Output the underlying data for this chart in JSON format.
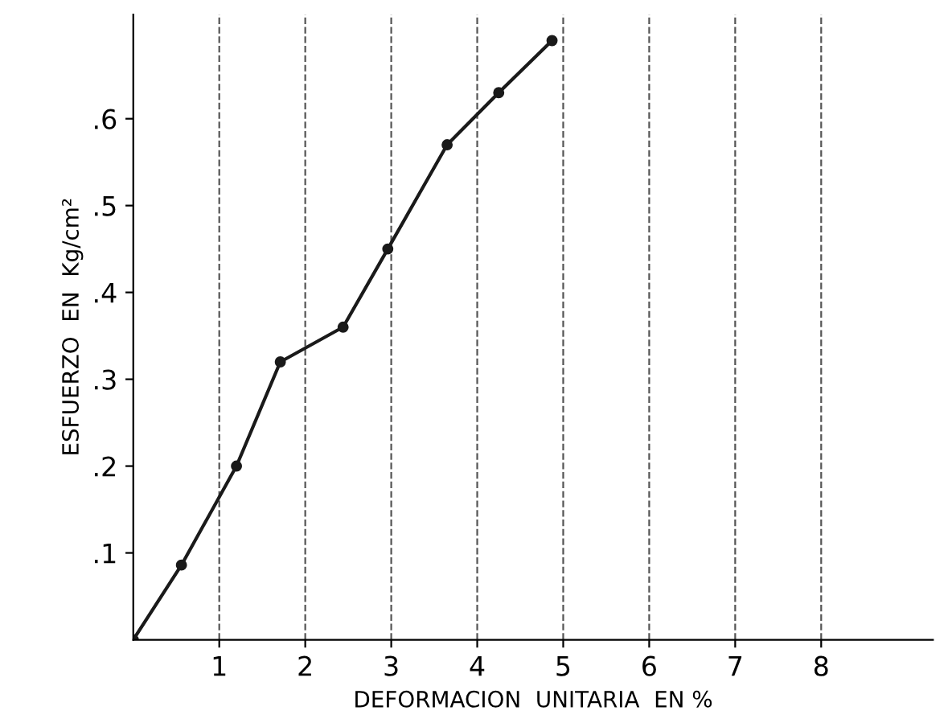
{
  "chart_data": {
    "type": "line",
    "xlabel": "DEFORMACION  UNITARIA  EN %",
    "ylabel": "ESFUERZO  EN  Kg/cm²",
    "x": [
      0,
      0.56,
      1.2,
      1.71,
      2.44,
      2.96,
      3.65,
      4.25,
      4.87
    ],
    "series": [
      {
        "color": "#1a1a1a",
        "values": [
          0,
          0.086,
          0.2,
          0.32,
          0.36,
          0.45,
          0.57,
          0.63,
          0.69
        ]
      }
    ],
    "xlim": [
      0,
      9.3
    ],
    "ylim": [
      0,
      0.72
    ],
    "xticks": [
      1,
      2,
      3,
      4,
      5,
      6,
      7,
      8
    ],
    "yticks": [
      {
        "value": 0.1,
        "label": ".1"
      },
      {
        "value": 0.2,
        "label": ".2"
      },
      {
        "value": 0.3,
        "label": ".3"
      },
      {
        "value": 0.4,
        "label": ".4"
      },
      {
        "value": 0.5,
        "label": ".5"
      },
      {
        "value": 0.6,
        "label": ".6"
      }
    ],
    "grid": "x",
    "marker": "circle",
    "line_style": "solid"
  }
}
